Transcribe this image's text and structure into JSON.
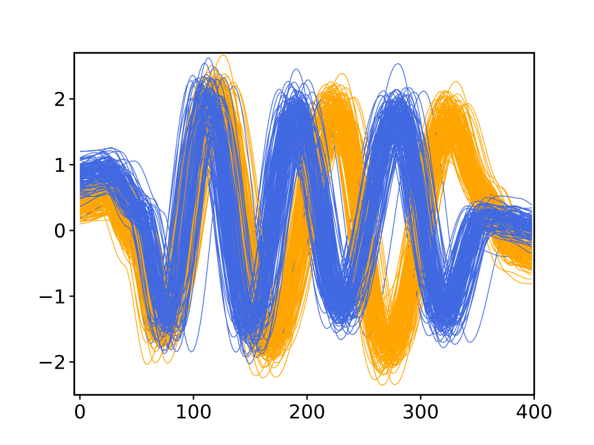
{
  "chart_data": {
    "type": "line",
    "title": "",
    "xlabel": "",
    "ylabel": "",
    "xlim": [
      -5,
      400
    ],
    "ylim": [
      -2.5,
      2.7
    ],
    "x_ticks": [
      0,
      100,
      200,
      300,
      400
    ],
    "x_tick_labels": [
      "0",
      "100",
      "200",
      "300",
      "400"
    ],
    "y_ticks": [
      -2,
      -1,
      0,
      1,
      2
    ],
    "y_tick_labels": [
      "−2",
      "−1",
      "0",
      "1",
      "2"
    ],
    "grid": false,
    "legend": "none",
    "colors": {
      "class_a": "#4169e1",
      "class_b": "#ffa500"
    },
    "class_a_key_points": {
      "x": [
        0,
        25,
        50,
        75,
        112,
        150,
        190,
        230,
        280,
        320,
        355,
        380,
        400
      ],
      "y": [
        0.8,
        0.9,
        0.3,
        -1.4,
        2.0,
        -1.5,
        1.8,
        -1.2,
        1.8,
        -1.3,
        0.2,
        0.1,
        0.0
      ]
    },
    "class_b_key_points": {
      "x": [
        0,
        25,
        50,
        70,
        120,
        165,
        225,
        270,
        325,
        355,
        380,
        400
      ],
      "y": [
        0.4,
        0.5,
        -0.2,
        -1.5,
        2.0,
        -1.7,
        1.8,
        -1.8,
        1.7,
        0.5,
        -0.3,
        -0.4
      ]
    },
    "series_count_estimate": {
      "class_a": 140,
      "class_b": 140
    }
  }
}
